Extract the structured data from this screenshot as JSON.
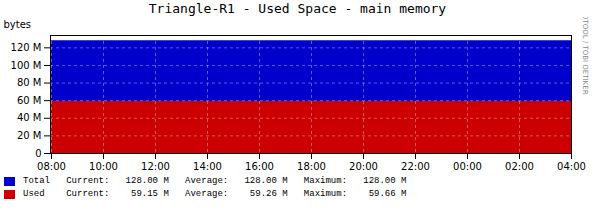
{
  "chart_data": {
    "type": "area",
    "title": "Triangle-R1 - Used Space - main memory",
    "ylabel": "bytes",
    "categories": [
      "08:00",
      "10:00",
      "12:00",
      "14:00",
      "16:00",
      "18:00",
      "20:00",
      "22:00",
      "00:00",
      "02:00",
      "04:00"
    ],
    "series": [
      {
        "name": "Total   Current:   128.00 M   Average:   128.00 M   Maximum:   128.00 M",
        "color": "#0000cc",
        "values": [
          128000000,
          128000000,
          128000000,
          128000000,
          128000000,
          128000000,
          128000000,
          128000000,
          128000000,
          128000000,
          128000000
        ]
      },
      {
        "name": "Used    Current:    59.15 M   Average:    59.26 M   Maximum:    59.66 M",
        "color": "#cc0000",
        "values": [
          59150000,
          59150000,
          59150000,
          59150000,
          59150000,
          59150000,
          59150000,
          59150000,
          59150000,
          59150000,
          59150000
        ]
      }
    ],
    "stacked": false,
    "ylim": [
      0,
      134000000
    ],
    "yticks": [
      0,
      {
        "value": 20000000,
        "label": "20 M"
      },
      {
        "value": 40000000,
        "label": "40 M"
      },
      {
        "value": 60000000,
        "label": "60 M"
      },
      {
        "value": 80000000,
        "label": "80 M"
      },
      {
        "value": 100000000,
        "label": "100 M"
      },
      {
        "value": 120000000,
        "label": "120 M"
      }
    ],
    "grid": true,
    "legend": "bottom",
    "annotations": [
      "RRDTOOL / TOBI OETIKER"
    ]
  }
}
